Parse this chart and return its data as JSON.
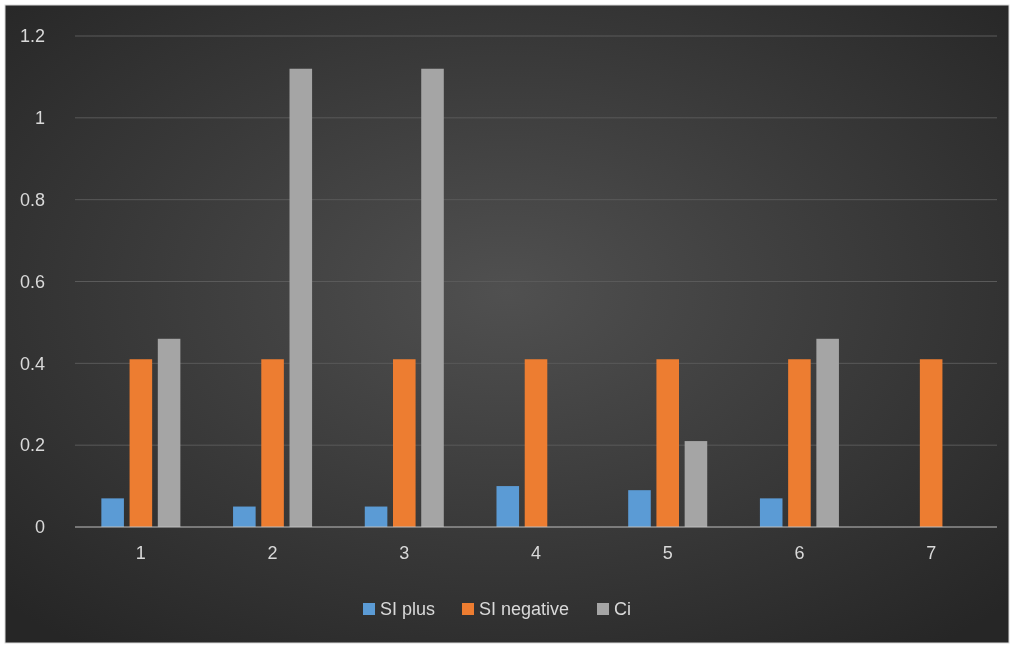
{
  "chart_data": {
    "type": "bar",
    "categories": [
      "1",
      "2",
      "3",
      "4",
      "5",
      "6",
      "7"
    ],
    "series": [
      {
        "name": "SI plus",
        "color": "#5b9bd5",
        "values": [
          0.07,
          0.05,
          0.05,
          0.1,
          0.09,
          0.07,
          0
        ]
      },
      {
        "name": "SI negative",
        "color": "#ed7d31",
        "values": [
          0.41,
          0.41,
          0.41,
          0.41,
          0.41,
          0.41,
          0.41
        ]
      },
      {
        "name": "Ci",
        "color": "#a5a5a5",
        "values": [
          0.46,
          1.12,
          1.12,
          0,
          0.21,
          0.46,
          0
        ]
      }
    ],
    "ylim": [
      0,
      1.2
    ],
    "yticks": [
      0,
      {
        "value": 0.2,
        "label": "0.2"
      },
      {
        "value": 0.4,
        "label": "0.4"
      },
      {
        "value": 0.6,
        "label": "0.6"
      },
      {
        "value": 0.8,
        "label": "0.8"
      },
      1,
      {
        "value": 1.2,
        "label": "1.2"
      }
    ],
    "grid": "y",
    "legend": "bottom"
  }
}
